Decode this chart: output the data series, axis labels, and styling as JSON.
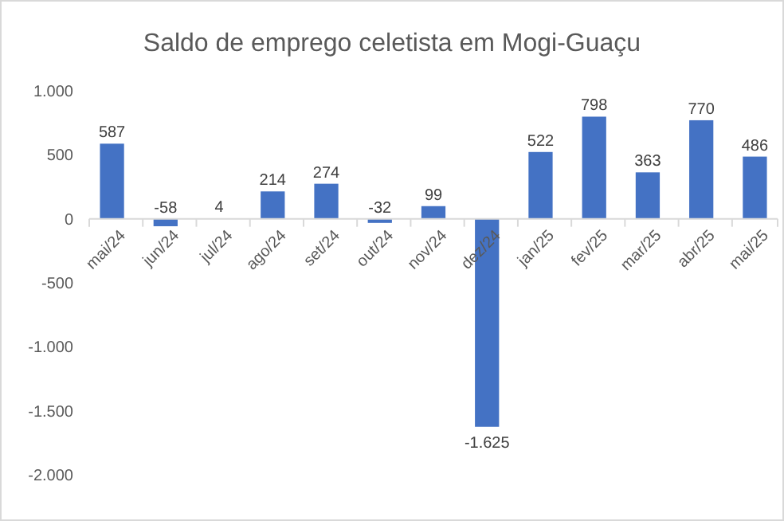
{
  "chart_data": {
    "type": "bar",
    "title": "Saldo de emprego celetista em Mogi-Guaçu",
    "categories": [
      "mai/24",
      "jun/24",
      "jul/24",
      "ago/24",
      "set/24",
      "out/24",
      "nov/24",
      "dez/24",
      "jan/25",
      "fev/25",
      "mar/25",
      "abr/25",
      "mai/25"
    ],
    "values": [
      587,
      -58,
      4,
      214,
      274,
      -32,
      99,
      -1625,
      522,
      798,
      363,
      770,
      486
    ],
    "color": "#4472c4",
    "value_labels": [
      "587",
      "-58",
      "4",
      "214",
      "274",
      "-32",
      "99",
      "-1.625",
      "522",
      "798",
      "363",
      "770",
      "486"
    ],
    "ylim": [
      -2000,
      1000
    ],
    "yticks": [
      {
        "value": -2000,
        "label": "-2.000"
      },
      {
        "value": -1500,
        "label": "-1.500"
      },
      {
        "value": -1000,
        "label": "-1.000"
      },
      {
        "value": -500,
        "label": "-500"
      },
      0,
      500,
      {
        "value": 1000,
        "label": "1.000"
      }
    ],
    "grid": false
  }
}
